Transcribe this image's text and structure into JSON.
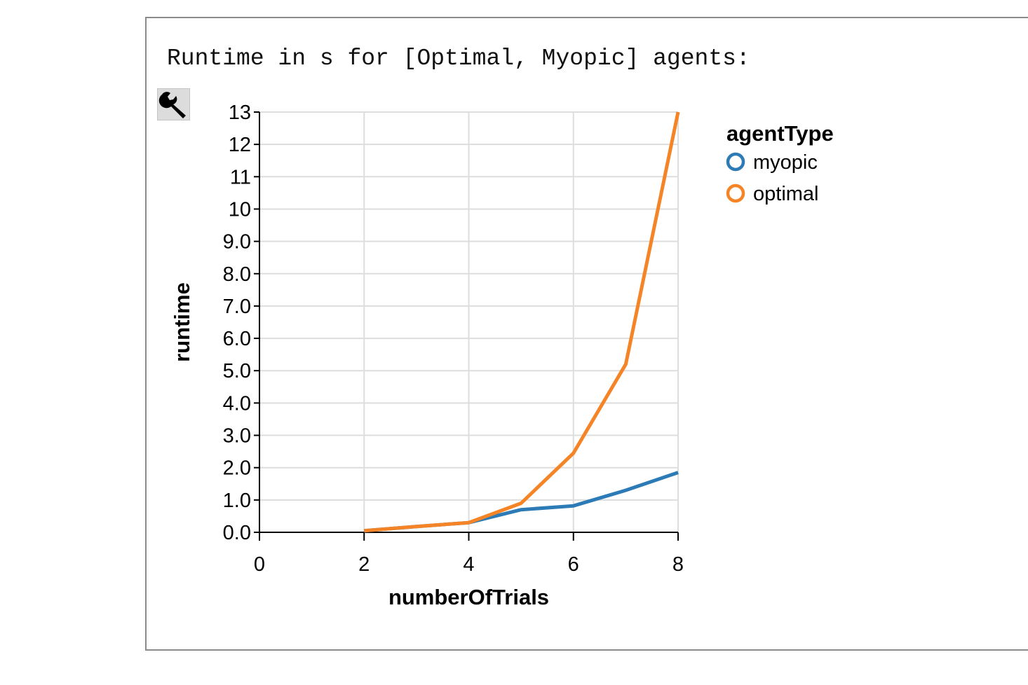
{
  "output": {
    "text": "Runtime in s for [Optimal, Myopic] agents:"
  },
  "toolbar": {
    "icon": "wrench-icon"
  },
  "chart_data": {
    "type": "line",
    "xlabel": "numberOfTrials",
    "ylabel": "runtime",
    "xlim": [
      0,
      8
    ],
    "ylim": [
      0,
      13
    ],
    "x_ticks": [
      0,
      2,
      4,
      6,
      8
    ],
    "x_tick_labels": [
      "0",
      "2",
      "4",
      "6",
      "8"
    ],
    "y_ticks": [
      0,
      1,
      2,
      3,
      4,
      5,
      6,
      7,
      8,
      9,
      10,
      11,
      12,
      13
    ],
    "y_tick_labels": [
      "0.0",
      "1.0",
      "2.0",
      "3.0",
      "4.0",
      "5.0",
      "6.0",
      "7.0",
      "8.0",
      "9.0",
      "10",
      "11",
      "12",
      "13"
    ],
    "grid": true,
    "legend": {
      "title": "agentType",
      "position": "top-right"
    },
    "series": [
      {
        "name": "myopic",
        "color": "#2c7bb6",
        "x": [
          2,
          3,
          4,
          5,
          6,
          7,
          8
        ],
        "y": [
          0.05,
          0.18,
          0.3,
          0.7,
          0.82,
          1.3,
          1.85
        ]
      },
      {
        "name": "optimal",
        "color": "#f58426",
        "x": [
          2,
          3,
          4,
          5,
          6,
          7,
          8
        ],
        "y": [
          0.05,
          0.18,
          0.3,
          0.9,
          2.45,
          5.2,
          13.0
        ]
      }
    ]
  }
}
